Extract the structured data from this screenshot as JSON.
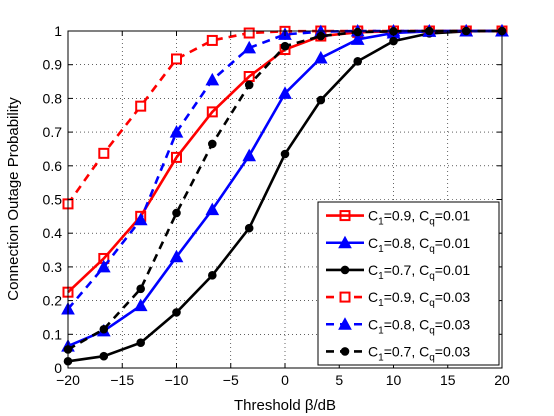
{
  "chart_data": {
    "type": "line",
    "xlabel": "Threshold β/dB",
    "ylabel": "Connection Outage Probability",
    "xlim": [
      -20,
      20
    ],
    "ylim": [
      0,
      1
    ],
    "xticks": [
      "−20",
      "−15",
      "−10",
      "−5",
      "0",
      "5",
      "10",
      "15",
      "20"
    ],
    "yticks": [
      "0",
      "0.1",
      "0.2",
      "0.3",
      "0.4",
      "0.5",
      "0.6",
      "0.7",
      "0.8",
      "0.9",
      "1"
    ],
    "grid": true,
    "legend_position": "bottom-right",
    "x": [
      -20,
      -16.7,
      -13.3,
      -10,
      -6.7,
      -3.3,
      0,
      3.3,
      6.7,
      10,
      13.3,
      16.7,
      20
    ],
    "series": [
      {
        "name": "C1=0.9, Cq=0.01",
        "legend": {
          "c1": "0.9",
          "cq": "0.01"
        },
        "color": "#ff0000",
        "dash": "solid",
        "marker": "square",
        "values": [
          0.225,
          0.325,
          0.45,
          0.625,
          0.76,
          0.865,
          0.945,
          0.985,
          0.996,
          0.999,
          1.0,
          1.0,
          1.0
        ]
      },
      {
        "name": "C1=0.8, Cq=0.01",
        "legend": {
          "c1": "0.8",
          "cq": "0.01"
        },
        "color": "#0000ff",
        "dash": "solid",
        "marker": "triangle",
        "values": [
          0.065,
          0.11,
          0.185,
          0.33,
          0.47,
          0.63,
          0.815,
          0.92,
          0.975,
          0.994,
          0.999,
          1.0,
          1.0
        ]
      },
      {
        "name": "C1=0.7, Cq=0.01",
        "legend": {
          "c1": "0.7",
          "cq": "0.01"
        },
        "color": "#000000",
        "dash": "solid",
        "marker": "circle",
        "values": [
          0.02,
          0.035,
          0.075,
          0.165,
          0.275,
          0.415,
          0.635,
          0.795,
          0.91,
          0.97,
          0.993,
          0.999,
          1.0
        ]
      },
      {
        "name": "C1=0.9, Cq=0.03",
        "legend": {
          "c1": "0.9",
          "cq": "0.03"
        },
        "color": "#ff0000",
        "dash": "dashed",
        "marker": "square-open",
        "values": [
          0.487,
          0.637,
          0.777,
          0.917,
          0.972,
          0.994,
          0.999,
          1.0,
          1.0,
          1.0,
          1.0,
          1.0,
          1.0
        ]
      },
      {
        "name": "C1=0.8, Cq=0.03",
        "legend": {
          "c1": "0.8",
          "cq": "0.03"
        },
        "color": "#0000ff",
        "dash": "dashed",
        "marker": "triangle",
        "values": [
          0.175,
          0.3,
          0.44,
          0.7,
          0.855,
          0.95,
          0.99,
          0.998,
          1.0,
          1.0,
          1.0,
          1.0,
          1.0
        ]
      },
      {
        "name": "C1=0.7, Cq=0.03",
        "legend": {
          "c1": "0.7",
          "cq": "0.03"
        },
        "color": "#000000",
        "dash": "dashed",
        "marker": "circle",
        "values": [
          0.055,
          0.115,
          0.235,
          0.46,
          0.665,
          0.84,
          0.955,
          0.985,
          0.997,
          0.999,
          1.0,
          1.0,
          1.0
        ]
      }
    ]
  }
}
